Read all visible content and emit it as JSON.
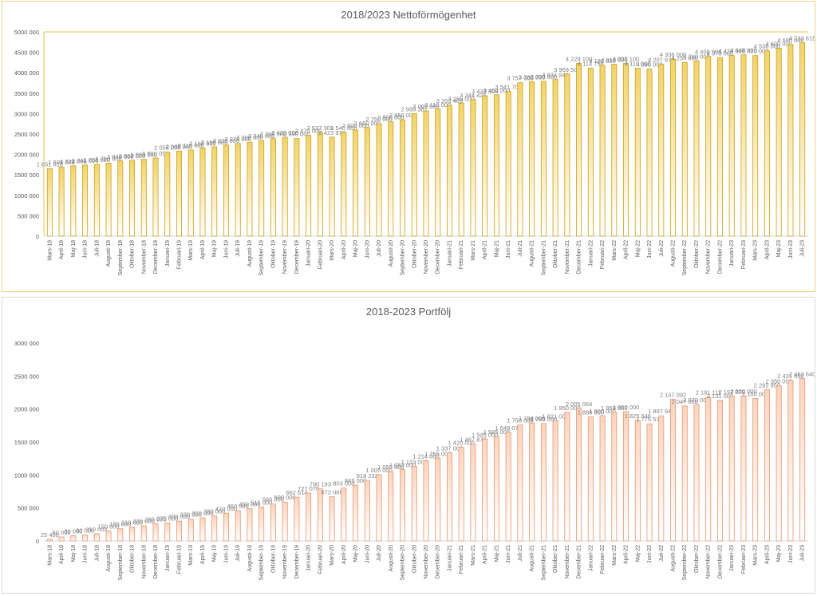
{
  "chart_data": [
    {
      "type": "bar",
      "title": "2018/2023 Nettoförmögenhet",
      "xlabel": "",
      "ylabel": "",
      "ylim": [
        0,
        5000000
      ],
      "yticks": [
        "0",
        "500 000",
        "1000 000",
        "1500 000",
        "2000 000",
        "2500 000",
        "3000 000",
        "3500 000",
        "4000 000",
        "4500 000",
        "5000 000"
      ],
      "grid": false,
      "legend": "none",
      "bar_color": "#f2d36b",
      "bar_edge": "#c9a21d",
      "categories": [
        "Mars-18",
        "April-18",
        "Maj-18",
        "Juni-18",
        "Juli-18",
        "Augusti-18",
        "September-18",
        "Oktober-18",
        "November-18",
        "December-18",
        "Januari-19",
        "Februari-19",
        "Mars-19",
        "April-19",
        "Maj-19",
        "Juni-19",
        "Juli-19",
        "Augusti-19",
        "September-19",
        "Oktober-19",
        "November-19",
        "December-19",
        "Januari-20",
        "Februari-20",
        "Mars-20",
        "April-20",
        "Maj-20",
        "Juni-20",
        "Juli-20",
        "Augusti-20",
        "September-20",
        "Oktober-20",
        "November-20",
        "December-20",
        "Januari-21",
        "Februari-21",
        "Mars-21",
        "April-21",
        "Maj-21",
        "Juni-21",
        "Juli-21",
        "Augusti-21",
        "September-21",
        "Oktober-21",
        "November-21",
        "December-21",
        "Januari-22",
        "Februari-22",
        "Mars-22",
        "April-22",
        "Maj-22",
        "Juni-22",
        "Juli-22",
        "Augusti-22",
        "September-22",
        "Oktober-22",
        "November-22",
        "December-22",
        "Januari-23",
        "Februari-23",
        "Mars-23",
        "April-23",
        "Maj-23",
        "Juni-23",
        "Juli-23"
      ],
      "values": [
        1651818,
        1695000,
        1722000,
        1741000,
        1760000,
        1790000,
        1840000,
        1860000,
        1880000,
        1915000,
        2056000,
        2080000,
        2110000,
        2160000,
        2190000,
        2230000,
        2270000,
        2300000,
        2340000,
        2390000,
        2420000,
        2390000,
        2470000,
        2537309,
        2423970,
        2540000,
        2600000,
        2660000,
        2750000,
        2800000,
        2850000,
        2999381,
        3065000,
        3110000,
        3203469,
        3255000,
        3344425,
        3433308,
        3460000,
        3541706,
        3757000,
        3780000,
        3790000,
        3834944,
        3969508,
        4229100,
        4114758,
        4180000,
        4210000,
        4229100,
        4110000,
        4090000,
        4207973,
        4336000,
        4250000,
        4290000,
        4400000,
        4370000,
        4420000,
        4440000,
        4420000,
        4538000,
        4600000,
        4690000,
        4733615
      ],
      "data_labels": [
        "1651818",
        "1695000",
        "1722000",
        "1741000",
        "1760000",
        "1790000",
        "1840000",
        "1860000",
        "1880000",
        "1915000",
        "2056000",
        "2080000",
        "2110000",
        "2160000",
        "2190000",
        "2230000",
        "2270000",
        "2300000",
        "2340000",
        "2390000",
        "2420000",
        "2390000",
        "2470000",
        "2537309",
        "2423970",
        "2540000",
        "2600000",
        "2660000",
        "2750000",
        "2800000",
        "2850000",
        "2999381",
        "3065000",
        "3110000",
        "3203469",
        "3255000",
        "3344425",
        "3433308",
        "3460000",
        "3541706",
        "3757000",
        "3780000",
        "3790000",
        "3834944",
        "3969508",
        "4229100",
        "4114758",
        "4180000",
        "4210000",
        "4229100",
        "4110000",
        "4090000",
        "4207973",
        "4336000",
        "4250000",
        "4290000",
        "4400000",
        "4370000",
        "4420000",
        "4440000",
        "4420000",
        "4538000",
        "4600000",
        "4690000",
        "4733615"
      ]
    },
    {
      "type": "bar",
      "title": "2018-2023 Portfölj",
      "xlabel": "",
      "ylabel": "",
      "ylim": [
        0,
        3000000
      ],
      "yticks": [
        "0",
        "500 000",
        "1000 000",
        "1500 000",
        "2000 000",
        "2500 000",
        "3000 000"
      ],
      "grid": false,
      "legend": "none",
      "bar_color": "#fbd5bf",
      "bar_edge": "#e69873",
      "categories": [
        "Mars-18",
        "April-18",
        "Maj-18",
        "Juni-18",
        "Juli-18",
        "Augusti-18",
        "September-18",
        "Oktober-18",
        "November-18",
        "December-18",
        "Januari-19",
        "Februari-19",
        "Mars-19",
        "April-19",
        "Maj-19",
        "Juni-19",
        "Juli-19",
        "Augusti-19",
        "September-19",
        "Oktober-19",
        "November-19",
        "December-19",
        "Januari-20",
        "Februari-20",
        "Mars-20",
        "April-20",
        "Maj-20",
        "Juni-20",
        "Juli-20",
        "Augusti-20",
        "September-20",
        "Oktober-20",
        "November-20",
        "December-20",
        "Januari-21",
        "Februari-21",
        "Mars-21",
        "April-21",
        "Maj-21",
        "Juni-21",
        "Juli-21",
        "Augusti-21",
        "September-21",
        "Oktober-21",
        "November-21",
        "December-21",
        "Januari-22",
        "Februari-22",
        "Mars-22",
        "April-22",
        "Maj-22",
        "Juni-22",
        "Juli-22",
        "Augusti-22",
        "September-22",
        "Oktober-22",
        "November-22",
        "December-22",
        "Januari-23",
        "Februari-23",
        "Mars-23",
        "April-23",
        "Maj-23",
        "Juni-23",
        "Juli-23"
      ],
      "values": [
        25460,
        60000,
        80000,
        90000,
        110000,
        150000,
        185000,
        210000,
        230000,
        260000,
        275000,
        300000,
        330000,
        350000,
        380000,
        420000,
        460000,
        490000,
        515000,
        560000,
        590000,
        662614,
        727070,
        790193,
        672066,
        803000,
        845000,
        918233,
        1005000,
        1050000,
        1083000,
        1133000,
        1214000,
        1255000,
        1337000,
        1420000,
        1467873,
        1545000,
        1585000,
        1648071,
        1758000,
        1790000,
        1780000,
        1821000,
        1950000,
        2005064,
        1880000,
        1900000,
        1950000,
        1960000,
        1825646,
        1775530,
        1897946,
        2147092,
        2047000,
        2070000,
        2181111,
        2131000,
        2192000,
        2200000,
        2160000,
        2292950,
        2350000,
        2431950,
        2463640
      ],
      "data_labels": [
        "25460",
        "60000",
        "80000",
        "90000",
        "110000",
        "150000",
        "185000",
        "210000",
        "230000",
        "260000",
        "275000",
        "300000",
        "330000",
        "350000",
        "380000",
        "420000",
        "460000",
        "490000",
        "515000",
        "560000",
        "590000",
        "662614",
        "727070",
        "790193",
        "672066",
        "803000",
        "845000",
        "918233",
        "1005000",
        "1050000",
        "1083000",
        "1133000",
        "1214000",
        "1255000",
        "1337000",
        "1420000",
        "1467873",
        "1545000",
        "1585000",
        "1648071",
        "1758000",
        "1790000",
        "1780000",
        "1821000",
        "1950000",
        "2005064",
        "1880000",
        "1900000",
        "1950000",
        "1960000",
        "1825646",
        "1775530",
        "1897946",
        "2147092",
        "2047000",
        "2070000",
        "2181111",
        "2131000",
        "2192000",
        "2200000",
        "2160000",
        "2292950",
        "2350000",
        "2431950",
        "2463640"
      ]
    }
  ]
}
